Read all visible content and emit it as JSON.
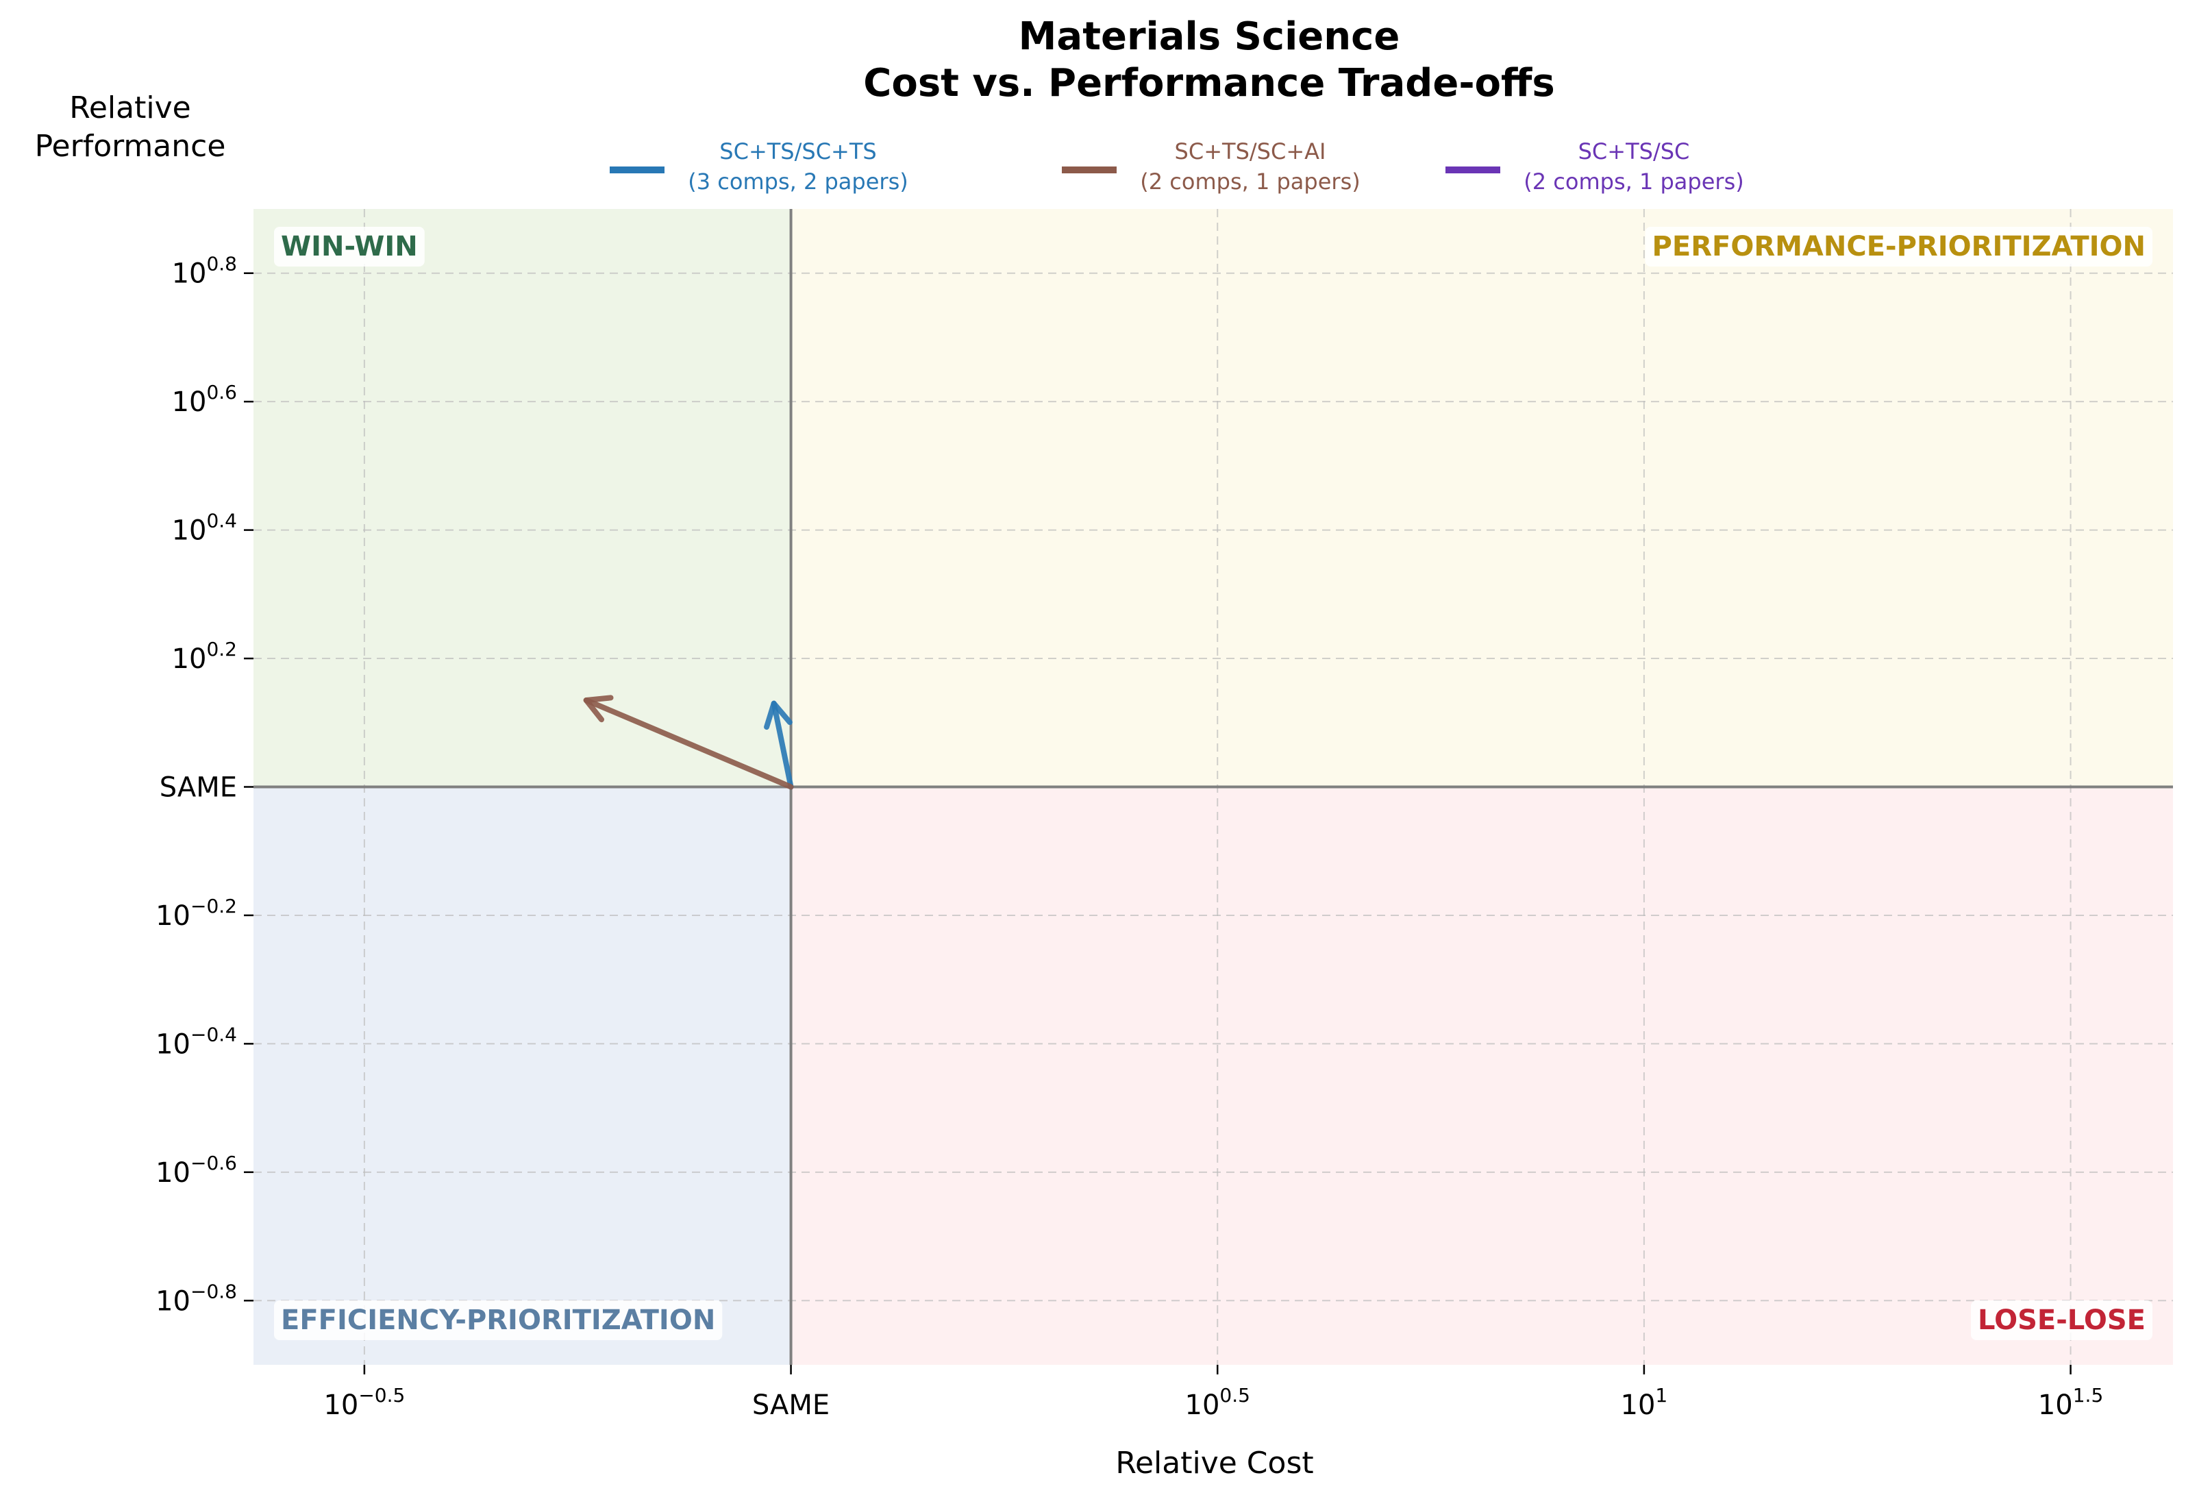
{
  "chart_data": {
    "type": "quiver",
    "title": [
      "Materials Science",
      "Cost vs. Performance Trade-offs"
    ],
    "xlabel": "Relative Cost",
    "ylabel": [
      "Relative",
      "Performance"
    ],
    "x_scale": "log10",
    "y_scale": "log10",
    "xlim_log10": [
      -0.63,
      1.62
    ],
    "ylim_log10": [
      -0.9,
      0.9
    ],
    "x_ticks": [
      {
        "exp": -0.5,
        "base": "10",
        "sup": "−0.5",
        "same": false
      },
      {
        "exp": 0,
        "base": "SAME",
        "sup": "",
        "same": true
      },
      {
        "exp": 0.5,
        "base": "10",
        "sup": "0.5",
        "same": false
      },
      {
        "exp": 1,
        "base": "10",
        "sup": "1",
        "same": false
      },
      {
        "exp": 1.5,
        "base": "10",
        "sup": "1.5",
        "same": false
      }
    ],
    "y_ticks": [
      {
        "exp": 0.8,
        "base": "10",
        "sup": "0.8",
        "same": false
      },
      {
        "exp": 0.6,
        "base": "10",
        "sup": "0.6",
        "same": false
      },
      {
        "exp": 0.4,
        "base": "10",
        "sup": "0.4",
        "same": false
      },
      {
        "exp": 0.2,
        "base": "10",
        "sup": "0.2",
        "same": false
      },
      {
        "exp": 0,
        "base": "SAME",
        "sup": "",
        "same": true
      },
      {
        "exp": -0.2,
        "base": "10",
        "sup": "−0.2",
        "same": false
      },
      {
        "exp": -0.4,
        "base": "10",
        "sup": "−0.4",
        "same": false
      },
      {
        "exp": -0.6,
        "base": "10",
        "sup": "−0.6",
        "same": false
      },
      {
        "exp": -0.8,
        "base": "10",
        "sup": "−0.8",
        "same": false
      }
    ],
    "grid": true,
    "legend_position": "top-center",
    "quadrants": [
      {
        "name": "WIN-WIN",
        "label": "WIN-WIN",
        "region": "top-left",
        "fill": "#eef5e7",
        "text_color": "#2e6b4a"
      },
      {
        "name": "PERFORMANCE-PRIORITIZATION",
        "label": "PERFORMANCE-PRIORITIZATION",
        "region": "top-right",
        "fill": "#fdfaec",
        "text_color": "#b8900f"
      },
      {
        "name": "EFFICIENCY-PRIORITIZATION",
        "label": "EFFICIENCY-PRIORITIZATION",
        "region": "bottom-left",
        "fill": "#eaeff7",
        "text_color": "#5b7fa3"
      },
      {
        "name": "LOSE-LOSE",
        "label": "LOSE-LOSE",
        "region": "bottom-right",
        "fill": "#fef0f1",
        "text_color": "#c22436"
      }
    ],
    "series": [
      {
        "name": "SC+TS/SC+TS",
        "detail": "(3 comps, 2 papers)",
        "color": "#2878b5",
        "arrows": [
          {
            "x0": 0,
            "y0": 0,
            "x1": -0.02,
            "y1": 0.13
          }
        ]
      },
      {
        "name": "SC+TS/SC+AI",
        "detail": "(2 comps, 1 papers)",
        "color": "#8c5a4a",
        "arrows": [
          {
            "x0": 0,
            "y0": 0,
            "x1": -0.24,
            "y1": 0.135
          }
        ]
      },
      {
        "name": "SC+TS/SC",
        "detail": "(2 comps, 1 papers)",
        "color": "#6a35b5",
        "arrows": []
      }
    ]
  }
}
